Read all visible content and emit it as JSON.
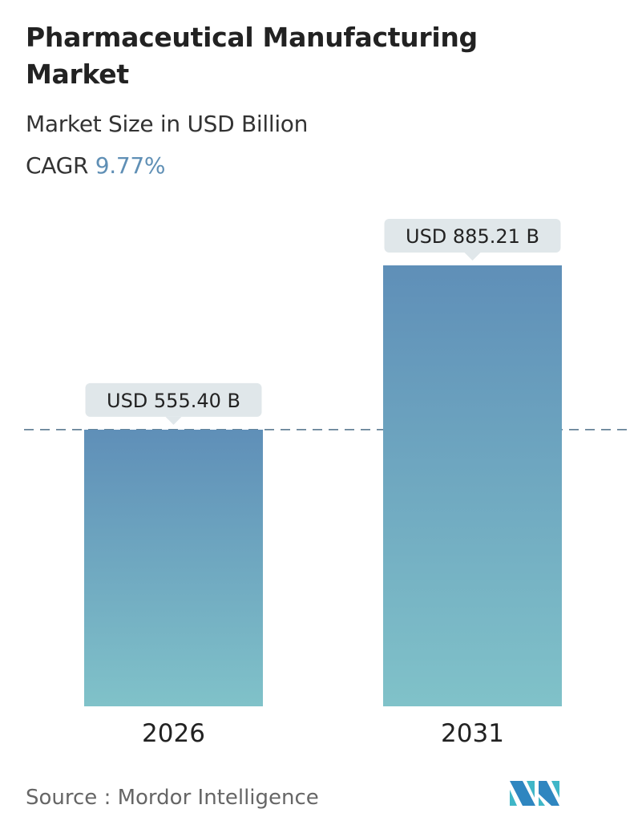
{
  "title": "Pharmaceutical Manufacturing Market",
  "subtitle": "Market Size in USD Billion",
  "cagr_label": "CAGR",
  "cagr_value": "9.77%",
  "source": "Source :  Mordor Intelligence",
  "logo_text": "Mordor Intelligence",
  "colors": {
    "bar_top": "#5f8fb8",
    "bar_bottom": "#7fc0c8",
    "label_bg": "#e0e7ea",
    "accent": "#5f8fb5"
  },
  "chart_data": {
    "type": "bar",
    "categories": [
      "2026",
      "2031"
    ],
    "values": [
      555.4,
      885.21
    ],
    "data_labels": [
      "USD 555.40 B",
      "USD 885.21 B"
    ],
    "reference_line": 555.4,
    "ylabel": "Market Size in USD Billion",
    "grid": false
  }
}
